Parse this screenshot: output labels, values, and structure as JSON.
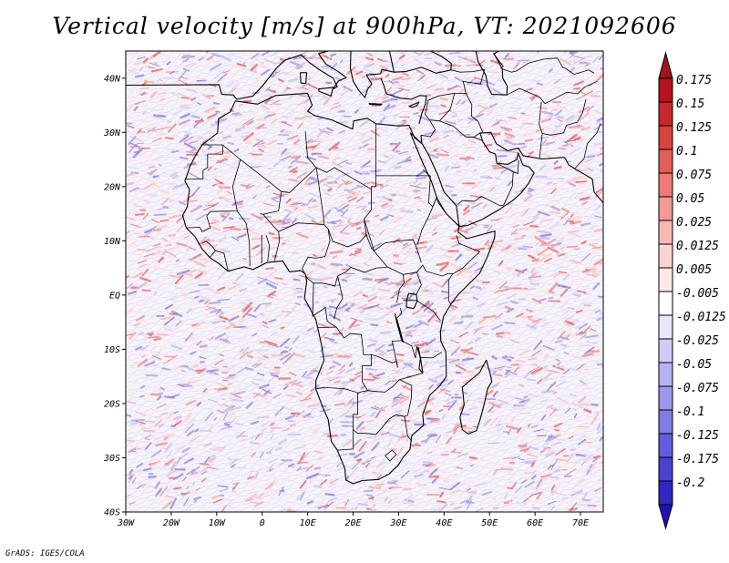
{
  "title": "Vertical velocity [m/s] at 900hPa, VT: 2021092606",
  "credit": "GrADS: IGES/COLA",
  "map": {
    "region": "Africa",
    "lon_range": [
      -30,
      75
    ],
    "lat_range": [
      -40,
      45
    ],
    "lon_ticks": [
      {
        "lon": -30,
        "label": "30W"
      },
      {
        "lon": -20,
        "label": "20W"
      },
      {
        "lon": -10,
        "label": "10W"
      },
      {
        "lon": 0,
        "label": "0"
      },
      {
        "lon": 10,
        "label": "10E"
      },
      {
        "lon": 20,
        "label": "20E"
      },
      {
        "lon": 30,
        "label": "30E"
      },
      {
        "lon": 40,
        "label": "40E"
      },
      {
        "lon": 50,
        "label": "50E"
      },
      {
        "lon": 60,
        "label": "60E"
      },
      {
        "lon": 70,
        "label": "70E"
      }
    ],
    "lat_ticks": [
      {
        "lat": 40,
        "label": "40N"
      },
      {
        "lat": 30,
        "label": "30N"
      },
      {
        "lat": 20,
        "label": "20N"
      },
      {
        "lat": 10,
        "label": "10N"
      },
      {
        "lat": 0,
        "label": "EQ"
      },
      {
        "lat": -10,
        "label": "10S"
      },
      {
        "lat": -20,
        "label": "20S"
      },
      {
        "lat": -30,
        "label": "30S"
      },
      {
        "lat": -40,
        "label": "40S"
      }
    ]
  },
  "colorbar": {
    "levels": [
      {
        "label": "0.175",
        "color": "#b4141e"
      },
      {
        "label": "0.15",
        "color": "#c8282d"
      },
      {
        "label": "0.125",
        "color": "#d8423f"
      },
      {
        "label": "0.1",
        "color": "#e35d59"
      },
      {
        "label": "0.075",
        "color": "#ec7b77"
      },
      {
        "label": "0.05",
        "color": "#f29a95"
      },
      {
        "label": "0.025",
        "color": "#f7b8b3"
      },
      {
        "label": "0.0125",
        "color": "#fbd3cf"
      },
      {
        "label": "0.005",
        "color": "#fde9e7"
      },
      {
        "label": "-0.005",
        "color": "#ffffff"
      },
      {
        "label": "-0.0125",
        "color": "#e7e6fb"
      },
      {
        "label": "-0.025",
        "color": "#cfcdf7"
      },
      {
        "label": "-0.05",
        "color": "#b7b3f2"
      },
      {
        "label": "-0.075",
        "color": "#9d98ec"
      },
      {
        "label": "-0.1",
        "color": "#817be4"
      },
      {
        "label": "-0.125",
        "color": "#645ddb"
      },
      {
        "label": "-0.175",
        "color": "#4a41cf"
      },
      {
        "label": "-0.2",
        "color": "#3126c0"
      }
    ],
    "top_arrow_color": "#a0141c",
    "bottom_arrow_color": "#2210b0"
  }
}
